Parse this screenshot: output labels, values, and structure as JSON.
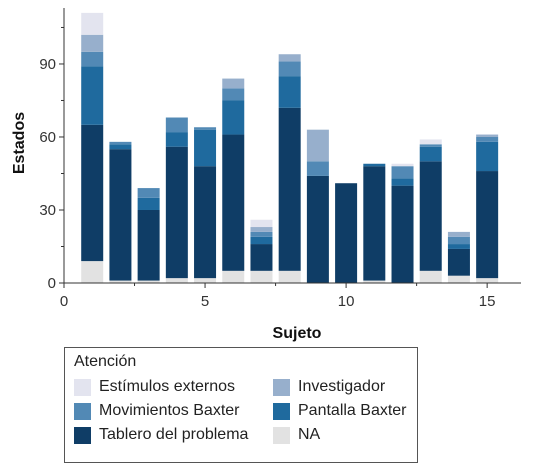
{
  "chart_data": {
    "type": "bar",
    "stacked": true,
    "xlabel": "Sujeto",
    "ylabel": "Estados",
    "xlim": [
      0,
      16.2
    ],
    "ylim": [
      0,
      113
    ],
    "x_ticks": [
      0,
      5,
      10,
      15
    ],
    "y_ticks": [
      0,
      30,
      60,
      90
    ],
    "grid": false,
    "legend_title": "Atención",
    "legend_position": "bottom-left",
    "x": [
      1,
      2,
      3,
      4,
      5,
      6,
      7,
      8,
      9,
      10,
      11,
      12,
      13,
      14,
      15
    ],
    "series": [
      {
        "name": "NA",
        "color": "#e2e2e2",
        "values": [
          9,
          1,
          1,
          2,
          2,
          5,
          5,
          5,
          0,
          0,
          1,
          0,
          5,
          3,
          2
        ]
      },
      {
        "name": "Tablero del problema",
        "color": "#0f3d66",
        "values": [
          56,
          54,
          29,
          54,
          46,
          56,
          11,
          67,
          44,
          41,
          47,
          40,
          45,
          11,
          44
        ]
      },
      {
        "name": "Pantalla Baxter",
        "color": "#1f6a9e",
        "values": [
          24,
          2,
          5,
          6,
          15,
          14,
          3,
          13,
          0,
          0,
          1,
          3,
          6,
          2,
          12
        ]
      },
      {
        "name": "Movimientos Baxter",
        "color": "#5289b5",
        "values": [
          6,
          1,
          4,
          6,
          1,
          5,
          2,
          6,
          6,
          0,
          0,
          5,
          1,
          3,
          2
        ]
      },
      {
        "name": "Investigador",
        "color": "#97afcc",
        "values": [
          7,
          0,
          0,
          0,
          0,
          4,
          2,
          3,
          13,
          0,
          0,
          0,
          0,
          2,
          1
        ]
      },
      {
        "name": "Estímulos externos",
        "color": "#e3e4ef",
        "values": [
          9,
          0,
          0,
          0,
          0,
          0,
          3,
          0,
          0,
          0,
          0,
          1,
          2,
          0,
          0
        ]
      }
    ]
  }
}
